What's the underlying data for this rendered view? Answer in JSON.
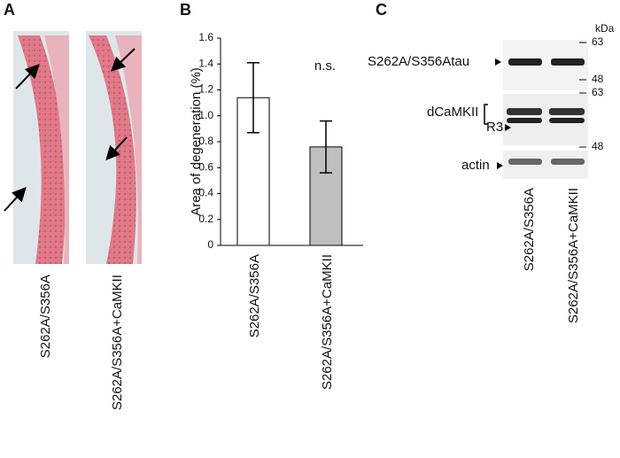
{
  "panel_a": {
    "label": "A",
    "lanes": [
      "S262A/S356A",
      "S262A/S356A+CaMKII"
    ]
  },
  "chart_data": {
    "type": "bar",
    "panel_label": "B",
    "ylabel": "Area  of degeneration (%)",
    "categories": [
      "S262A/S356A",
      "S262A/S356A+CaMKII"
    ],
    "values": [
      1.14,
      0.76
    ],
    "errors": [
      0.27,
      0.2
    ],
    "colors": [
      "#ffffff",
      "#bfbfbf"
    ],
    "ylim": [
      0,
      1.6
    ],
    "yticks": [
      0,
      0.2,
      0.4,
      0.6,
      0.8,
      {
        "value": 1.0,
        "label": "1.0"
      },
      1.2,
      1.4,
      1.6
    ],
    "annotation": "n.s."
  },
  "panel_c": {
    "label": "C",
    "unit": "kDa",
    "markers": [
      63,
      48,
      63,
      48
    ],
    "bands": [
      "S262A/S356Atau",
      "dCaMKII",
      "R3",
      "actin"
    ],
    "lanes": [
      "S262A/S356A",
      "S262A/S356A+CaMKII"
    ]
  }
}
